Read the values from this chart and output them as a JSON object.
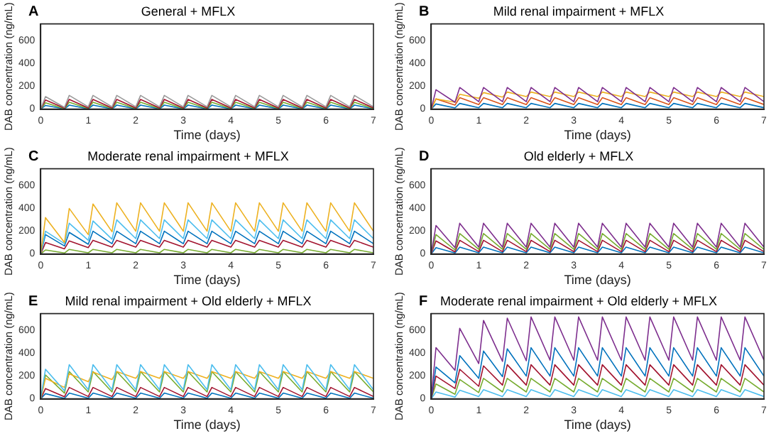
{
  "chart_data": [
    {
      "type": "line",
      "title": "General + MFLX",
      "xlabel": "Time (days)",
      "ylabel": "DAB concentration (ng/mL)",
      "annotations": [
        "A"
      ],
      "x": [
        0,
        0.1,
        0.5,
        0.6,
        1,
        1.1,
        1.5,
        1.6,
        2,
        2.1,
        2.5,
        2.6,
        3,
        3.1,
        3.5,
        3.6,
        4,
        4.1,
        4.5,
        4.6,
        5,
        5.1,
        5.5,
        5.6,
        6,
        6.1,
        6.5,
        6.6,
        7
      ],
      "xlim": [
        0,
        7
      ],
      "xticks": [
        0,
        1,
        2,
        3,
        4,
        5,
        6,
        7
      ],
      "ylim": [
        0,
        750
      ],
      "yticks": [
        0,
        200,
        400,
        600
      ],
      "series": [
        {
          "color": "#999999",
          "values": [
            0,
            110,
            15,
            120,
            20,
            120,
            20,
            120,
            20,
            120,
            20,
            120,
            20,
            120,
            20,
            120,
            20,
            120,
            20,
            120,
            20,
            120,
            20,
            120,
            20,
            120,
            20,
            120,
            20
          ]
        },
        {
          "color": "#a2142f",
          "values": [
            0,
            80,
            8,
            85,
            10,
            85,
            10,
            85,
            10,
            85,
            10,
            85,
            10,
            85,
            10,
            85,
            10,
            85,
            10,
            85,
            10,
            85,
            10,
            85,
            10,
            85,
            10,
            85,
            10
          ]
        },
        {
          "color": "#77ac30",
          "values": [
            0,
            55,
            4,
            60,
            5,
            60,
            5,
            60,
            5,
            60,
            5,
            60,
            5,
            60,
            5,
            60,
            5,
            60,
            5,
            60,
            5,
            60,
            5,
            60,
            5,
            60,
            5,
            60,
            5
          ]
        },
        {
          "color": "#0072bd",
          "values": [
            0,
            32,
            2,
            35,
            2,
            35,
            2,
            35,
            2,
            35,
            2,
            35,
            2,
            35,
            2,
            35,
            2,
            35,
            2,
            35,
            2,
            35,
            2,
            35,
            2,
            35,
            2,
            35,
            2
          ]
        }
      ]
    },
    {
      "type": "line",
      "title": "Mild renal impairment + MFLX",
      "xlabel": "Time (days)",
      "ylabel": "DAB concentration (ng/mL)",
      "annotations": [
        "B"
      ],
      "x": [
        0,
        0.1,
        0.5,
        0.6,
        1,
        1.1,
        1.5,
        1.6,
        2,
        2.1,
        2.5,
        2.6,
        3,
        3.1,
        3.5,
        3.6,
        4,
        4.1,
        4.5,
        4.6,
        5,
        5.1,
        5.5,
        5.6,
        6,
        6.1,
        6.5,
        6.6,
        7
      ],
      "xlim": [
        0,
        7
      ],
      "xticks": [
        0,
        1,
        2,
        3,
        4,
        5,
        6,
        7
      ],
      "ylim": [
        0,
        750
      ],
      "yticks": [
        0,
        200,
        400,
        600
      ],
      "series": [
        {
          "color": "#7e2f8e",
          "values": [
            0,
            170,
            60,
            190,
            65,
            190,
            65,
            190,
            65,
            190,
            65,
            190,
            65,
            190,
            65,
            190,
            65,
            190,
            65,
            190,
            65,
            190,
            65,
            190,
            65,
            190,
            65,
            190,
            65
          ]
        },
        {
          "color": "#edb120",
          "values": [
            0,
            90,
            60,
            130,
            95,
            145,
            105,
            150,
            110,
            150,
            110,
            150,
            110,
            150,
            110,
            150,
            110,
            150,
            110,
            150,
            110,
            150,
            110,
            150,
            110,
            150,
            110,
            150,
            110
          ]
        },
        {
          "color": "#d95319",
          "values": [
            0,
            90,
            35,
            100,
            40,
            100,
            40,
            100,
            40,
            100,
            40,
            100,
            40,
            100,
            40,
            100,
            40,
            100,
            40,
            100,
            40,
            100,
            40,
            100,
            40,
            100,
            40,
            100,
            40
          ]
        },
        {
          "color": "#0072bd",
          "values": [
            0,
            45,
            10,
            50,
            12,
            50,
            12,
            50,
            12,
            50,
            12,
            50,
            12,
            50,
            12,
            50,
            12,
            50,
            12,
            50,
            12,
            50,
            12,
            50,
            12,
            50,
            12,
            50,
            12
          ]
        }
      ]
    },
    {
      "type": "line",
      "title": "Moderate renal impairment + MFLX",
      "xlabel": "Time (days)",
      "ylabel": "DAB concentration (ng/mL)",
      "annotations": [
        "C"
      ],
      "x": [
        0,
        0.1,
        0.5,
        0.6,
        1,
        1.1,
        1.5,
        1.6,
        2,
        2.1,
        2.5,
        2.6,
        3,
        3.1,
        3.5,
        3.6,
        4,
        4.1,
        4.5,
        4.6,
        5,
        5.1,
        5.5,
        5.6,
        6,
        6.1,
        6.5,
        6.6,
        7
      ],
      "xlim": [
        0,
        7
      ],
      "xticks": [
        0,
        1,
        2,
        3,
        4,
        5,
        6,
        7
      ],
      "ylim": [
        0,
        750
      ],
      "yticks": [
        0,
        200,
        400,
        600
      ],
      "series": [
        {
          "color": "#edb120",
          "values": [
            0,
            320,
            100,
            400,
            170,
            440,
            195,
            450,
            200,
            450,
            200,
            450,
            200,
            450,
            200,
            450,
            200,
            450,
            200,
            450,
            200,
            450,
            200,
            450,
            200,
            450,
            200,
            450,
            200
          ]
        },
        {
          "color": "#4dbeee",
          "values": [
            0,
            200,
            90,
            270,
            120,
            290,
            130,
            300,
            135,
            300,
            135,
            300,
            135,
            300,
            135,
            300,
            135,
            300,
            135,
            300,
            135,
            300,
            135,
            300,
            135,
            300,
            135,
            300,
            135
          ]
        },
        {
          "color": "#0072bd",
          "values": [
            0,
            170,
            70,
            190,
            85,
            200,
            90,
            200,
            90,
            200,
            90,
            200,
            90,
            200,
            90,
            200,
            90,
            200,
            90,
            200,
            90,
            200,
            90,
            200,
            90,
            200,
            90,
            200,
            90
          ]
        },
        {
          "color": "#a2142f",
          "values": [
            0,
            100,
            45,
            115,
            55,
            120,
            60,
            120,
            60,
            120,
            60,
            120,
            60,
            120,
            60,
            120,
            60,
            120,
            60,
            120,
            60,
            120,
            60,
            120,
            60,
            120,
            60,
            120,
            60
          ]
        },
        {
          "color": "#77ac30",
          "values": [
            0,
            35,
            8,
            40,
            10,
            40,
            10,
            40,
            10,
            40,
            10,
            40,
            10,
            40,
            10,
            40,
            10,
            40,
            10,
            40,
            10,
            40,
            10,
            40,
            10,
            40,
            10,
            40,
            10
          ]
        }
      ]
    },
    {
      "type": "line",
      "title": "Old elderly + MFLX",
      "xlabel": "Time (days)",
      "ylabel": "DAB concentration (ng/mL)",
      "annotations": [
        "D"
      ],
      "x": [
        0,
        0.1,
        0.5,
        0.6,
        1,
        1.1,
        1.5,
        1.6,
        2,
        2.1,
        2.5,
        2.6,
        3,
        3.1,
        3.5,
        3.6,
        4,
        4.1,
        4.5,
        4.6,
        5,
        5.1,
        5.5,
        5.6,
        6,
        6.1,
        6.5,
        6.6,
        7
      ],
      "xlim": [
        0,
        7
      ],
      "xticks": [
        0,
        1,
        2,
        3,
        4,
        5,
        6,
        7
      ],
      "ylim": [
        0,
        750
      ],
      "yticks": [
        0,
        200,
        400,
        600
      ],
      "series": [
        {
          "color": "#7e2f8e",
          "values": [
            0,
            250,
            55,
            270,
            60,
            270,
            60,
            270,
            60,
            270,
            60,
            270,
            60,
            270,
            60,
            270,
            60,
            270,
            60,
            270,
            60,
            270,
            60,
            270,
            60,
            270,
            60,
            270,
            60
          ]
        },
        {
          "color": "#77ac30",
          "values": [
            0,
            170,
            35,
            180,
            40,
            180,
            40,
            180,
            40,
            180,
            40,
            180,
            40,
            180,
            40,
            180,
            40,
            180,
            40,
            180,
            40,
            180,
            40,
            180,
            40,
            180,
            40,
            180,
            40
          ]
        },
        {
          "color": "#a2142f",
          "values": [
            0,
            115,
            18,
            120,
            20,
            120,
            20,
            120,
            20,
            120,
            20,
            120,
            20,
            120,
            20,
            120,
            20,
            120,
            20,
            120,
            20,
            120,
            20,
            120,
            20,
            120,
            20,
            120,
            20
          ]
        },
        {
          "color": "#0072bd",
          "values": [
            0,
            55,
            8,
            60,
            10,
            60,
            10,
            60,
            10,
            60,
            10,
            60,
            10,
            60,
            10,
            60,
            10,
            60,
            10,
            60,
            10,
            60,
            10,
            60,
            10,
            60,
            10,
            60,
            10
          ]
        }
      ]
    },
    {
      "type": "line",
      "title": "Mild renal impairment + Old elderly + MFLX",
      "xlabel": "Time (days)",
      "ylabel": "DAB concentration (ng/mL)",
      "annotations": [
        "E"
      ],
      "x": [
        0,
        0.1,
        0.5,
        0.6,
        1,
        1.1,
        1.5,
        1.6,
        2,
        2.1,
        2.5,
        2.6,
        3,
        3.1,
        3.5,
        3.6,
        4,
        4.1,
        4.5,
        4.6,
        5,
        5.1,
        5.5,
        5.6,
        6,
        6.1,
        6.5,
        6.6,
        7
      ],
      "xlim": [
        0,
        7
      ],
      "xticks": [
        0,
        1,
        2,
        3,
        4,
        5,
        6,
        7
      ],
      "ylim": [
        0,
        750
      ],
      "yticks": [
        0,
        200,
        400,
        600
      ],
      "series": [
        {
          "color": "#4dbeee",
          "values": [
            0,
            260,
            70,
            300,
            80,
            300,
            80,
            300,
            80,
            300,
            80,
            300,
            80,
            300,
            80,
            300,
            80,
            300,
            80,
            300,
            80,
            300,
            80,
            300,
            80,
            300,
            80,
            300,
            80
          ]
        },
        {
          "color": "#edb120",
          "values": [
            0,
            180,
            100,
            220,
            150,
            235,
            170,
            240,
            180,
            240,
            180,
            240,
            180,
            240,
            180,
            240,
            180,
            240,
            180,
            240,
            180,
            240,
            180,
            240,
            180,
            240,
            180,
            240,
            180
          ]
        },
        {
          "color": "#77ac30",
          "values": [
            0,
            210,
            50,
            240,
            60,
            240,
            60,
            240,
            60,
            240,
            60,
            240,
            60,
            240,
            60,
            240,
            60,
            240,
            60,
            240,
            60,
            240,
            60,
            240,
            60,
            240,
            60,
            240,
            60
          ]
        },
        {
          "color": "#a2142f",
          "values": [
            0,
            90,
            18,
            100,
            20,
            100,
            20,
            100,
            20,
            100,
            20,
            100,
            20,
            100,
            20,
            100,
            20,
            100,
            20,
            100,
            20,
            100,
            20,
            100,
            20,
            100,
            20,
            100,
            20
          ]
        },
        {
          "color": "#0072bd",
          "values": [
            0,
            45,
            4,
            50,
            5,
            50,
            5,
            50,
            5,
            50,
            5,
            50,
            5,
            50,
            5,
            50,
            5,
            50,
            5,
            50,
            5,
            50,
            5,
            50,
            5,
            50,
            5,
            50,
            5
          ]
        }
      ]
    },
    {
      "type": "line",
      "title": "Moderate renal impairment + Old elderly + MFLX",
      "xlabel": "Time (days)",
      "ylabel": "DAB concentration (ng/mL)",
      "annotations": [
        "F"
      ],
      "x": [
        0,
        0.1,
        0.5,
        0.6,
        1,
        1.1,
        1.5,
        1.6,
        2,
        2.1,
        2.5,
        2.6,
        3,
        3.1,
        3.5,
        3.6,
        4,
        4.1,
        4.5,
        4.6,
        5,
        5.1,
        5.5,
        5.6,
        6,
        6.1,
        6.5,
        6.6,
        7
      ],
      "xlim": [
        0,
        7
      ],
      "xticks": [
        0,
        1,
        2,
        3,
        4,
        5,
        6,
        7
      ],
      "ylim": [
        0,
        750
      ],
      "yticks": [
        0,
        200,
        400,
        600
      ],
      "series": [
        {
          "color": "#7e2f8e",
          "values": [
            0,
            450,
            250,
            620,
            310,
            690,
            330,
            710,
            335,
            720,
            340,
            720,
            340,
            720,
            340,
            720,
            340,
            720,
            340,
            720,
            340,
            720,
            340,
            720,
            340,
            720,
            340,
            720,
            340
          ]
        },
        {
          "color": "#0072bd",
          "values": [
            0,
            280,
            140,
            380,
            180,
            420,
            195,
            440,
            200,
            450,
            200,
            450,
            200,
            450,
            200,
            450,
            200,
            450,
            200,
            450,
            200,
            450,
            200,
            450,
            200,
            450,
            200,
            450,
            200
          ]
        },
        {
          "color": "#a2142f",
          "values": [
            0,
            200,
            90,
            260,
            110,
            290,
            120,
            300,
            120,
            300,
            120,
            300,
            120,
            300,
            120,
            300,
            120,
            300,
            120,
            300,
            120,
            300,
            120,
            300,
            120,
            300,
            120,
            300,
            120
          ]
        },
        {
          "color": "#77ac30",
          "values": [
            0,
            130,
            40,
            170,
            55,
            180,
            60,
            180,
            60,
            180,
            60,
            180,
            60,
            180,
            60,
            180,
            60,
            180,
            60,
            180,
            60,
            180,
            60,
            180,
            60,
            180,
            60,
            180,
            60
          ]
        },
        {
          "color": "#4dbeee",
          "values": [
            0,
            60,
            15,
            75,
            20,
            80,
            20,
            80,
            20,
            80,
            20,
            80,
            20,
            80,
            20,
            80,
            20,
            80,
            20,
            80,
            20,
            80,
            20,
            80,
            20,
            80,
            20,
            80,
            20
          ]
        }
      ]
    }
  ]
}
